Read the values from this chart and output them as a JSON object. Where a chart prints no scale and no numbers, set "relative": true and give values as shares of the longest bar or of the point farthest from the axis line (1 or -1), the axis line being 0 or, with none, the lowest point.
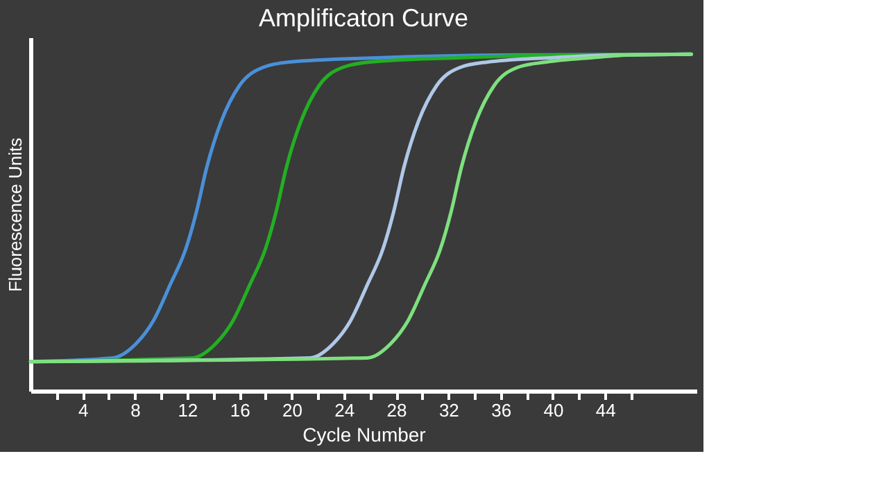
{
  "chart_data": {
    "type": "line",
    "title": "Amplificaton Curve",
    "xlabel": "Cycle Number",
    "ylabel": "Fluorescence Units",
    "relative": true,
    "xlim": [
      0,
      51
    ],
    "xticks": [
      {
        "value": 2,
        "label": null
      },
      4,
      {
        "value": 6,
        "label": null
      },
      8,
      {
        "value": 10,
        "label": null
      },
      12,
      {
        "value": 14,
        "label": null
      },
      16,
      {
        "value": 18,
        "label": null
      },
      20,
      {
        "value": 22,
        "label": null
      },
      24,
      {
        "value": 26,
        "label": null
      },
      28,
      {
        "value": 30,
        "label": null
      },
      32,
      {
        "value": 34,
        "label": null
      },
      36,
      {
        "value": 38,
        "label": null
      },
      40,
      {
        "value": 42,
        "label": null
      },
      44,
      {
        "value": 46,
        "label": null
      }
    ],
    "grid": false,
    "legend": false,
    "marker": "none",
    "line_style": "solid",
    "series": [
      {
        "color": "#4a90d9",
        "x": [
          0,
          6.3,
          8.1,
          9.4,
          10.7,
          11.9,
          12.7,
          13.5,
          14.6,
          16.0,
          17.8,
          19.8,
          26.8,
          37.2,
          50.6
        ],
        "values": [
          0.087,
          0.098,
          0.141,
          0.208,
          0.316,
          0.423,
          0.531,
          0.665,
          0.8,
          0.907,
          0.961,
          0.977,
          0.99,
          0.998,
          1
        ]
      },
      {
        "color": "#22b022",
        "x": [
          0,
          12.4,
          14.2,
          15.5,
          16.8,
          18.0,
          18.8,
          19.6,
          20.7,
          22.1,
          23.9,
          26,
          33,
          41,
          50.6
        ],
        "values": [
          0.087,
          0.098,
          0.141,
          0.208,
          0.316,
          0.423,
          0.531,
          0.665,
          0.8,
          0.907,
          0.961,
          0.977,
          0.99,
          0.998,
          1
        ]
      },
      {
        "color": "#b0c8e8",
        "x": [
          0,
          21.4,
          23.2,
          24.5,
          25.8,
          27.0,
          27.8,
          28.6,
          29.7,
          31.1,
          32.9,
          35,
          40,
          45,
          50.6
        ],
        "values": [
          0.087,
          0.098,
          0.141,
          0.208,
          0.316,
          0.423,
          0.531,
          0.665,
          0.8,
          0.907,
          0.961,
          0.977,
          0.99,
          0.998,
          1
        ]
      },
      {
        "color": "#7ee07e",
        "x": [
          0,
          25.8,
          27.6,
          28.9,
          30.2,
          31.4,
          32.2,
          33.0,
          34.1,
          35.5,
          37.3,
          39.5,
          43,
          46,
          50.6
        ],
        "values": [
          0.087,
          0.098,
          0.141,
          0.208,
          0.316,
          0.423,
          0.531,
          0.665,
          0.8,
          0.907,
          0.961,
          0.977,
          0.99,
          0.998,
          1
        ]
      }
    ]
  }
}
